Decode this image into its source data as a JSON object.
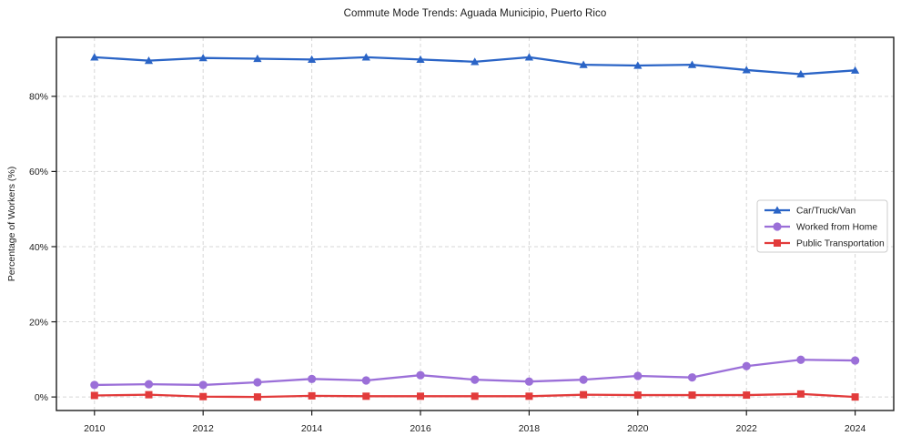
{
  "chart_data": {
    "type": "line",
    "title": "Commute Mode Trends: Aguada Municipio, Puerto Rico",
    "xlabel": "",
    "ylabel": "Percentage of Workers (%)",
    "x": [
      2010,
      2011,
      2012,
      2013,
      2014,
      2015,
      2016,
      2017,
      2018,
      2019,
      2020,
      2021,
      2022,
      2023,
      2024
    ],
    "x_ticks": [
      2010,
      2012,
      2014,
      2016,
      2018,
      2020,
      2022,
      2024
    ],
    "x_tick_labels": [
      "2010",
      "2012",
      "2014",
      "2016",
      "2018",
      "2020",
      "2022",
      "2024"
    ],
    "y_ticks": [
      0,
      20,
      40,
      60,
      80
    ],
    "y_tick_labels": [
      "0%",
      "20%",
      "40%",
      "60%",
      "80%"
    ],
    "xlim": [
      2009.3,
      2024.71
    ],
    "ylim": [
      -3.6,
      95.7
    ],
    "grid": "dashed",
    "grid_color": "#d7d7d7",
    "spine_color": "#1c1c1c",
    "legend": {
      "position": "center-right",
      "background": "#ffffff",
      "border_color": "#cccccc"
    },
    "series": [
      {
        "name": "Car/Truck/Van",
        "color": "#2a64c6",
        "marker": "triangle",
        "values": [
          90.4,
          89.5,
          90.2,
          90.0,
          89.8,
          90.4,
          89.8,
          89.2,
          90.4,
          88.4,
          88.2,
          88.4,
          87.0,
          85.9,
          86.9
        ]
      },
      {
        "name": "Worked from Home",
        "color": "#9b6fd8",
        "marker": "circle",
        "values": [
          3.2,
          3.4,
          3.2,
          3.9,
          4.8,
          4.4,
          5.8,
          4.6,
          4.1,
          4.6,
          5.6,
          5.2,
          8.2,
          9.9,
          9.7
        ]
      },
      {
        "name": "Public Transportation",
        "color": "#e23b3b",
        "marker": "square",
        "values": [
          0.4,
          0.6,
          0.1,
          0.0,
          0.3,
          0.2,
          0.2,
          0.2,
          0.2,
          0.6,
          0.5,
          0.5,
          0.5,
          0.8,
          0.0
        ]
      }
    ]
  }
}
